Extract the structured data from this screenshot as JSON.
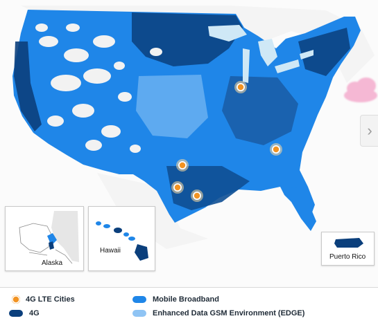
{
  "colors": {
    "mobile_broadband": "#1f86e8",
    "fourg": "#0b3f7c",
    "edge": "#8fc4f4",
    "lte_marker": "#f29322",
    "lakes": "#cfe8f6",
    "land_bg": "#f3f3f3"
  },
  "insets": {
    "alaska": {
      "label": "Alaska"
    },
    "hawaii": {
      "label": "Hawaii"
    },
    "puerto_rico": {
      "label": "Puerto Rico"
    }
  },
  "legend": {
    "lte_cities": "4G LTE Cities",
    "fourg": "4G",
    "mobile_broadband": "Mobile Broadband",
    "edge": "Enhanced Data GSM Environment (EDGE)"
  },
  "next_arrow": {
    "icon": "chevron-right-icon",
    "glyph": "›"
  },
  "lte_markers": [
    {
      "name": "Chicago"
    },
    {
      "name": "Atlanta"
    },
    {
      "name": "Dallas"
    },
    {
      "name": "San Antonio"
    },
    {
      "name": "Houston"
    }
  ]
}
